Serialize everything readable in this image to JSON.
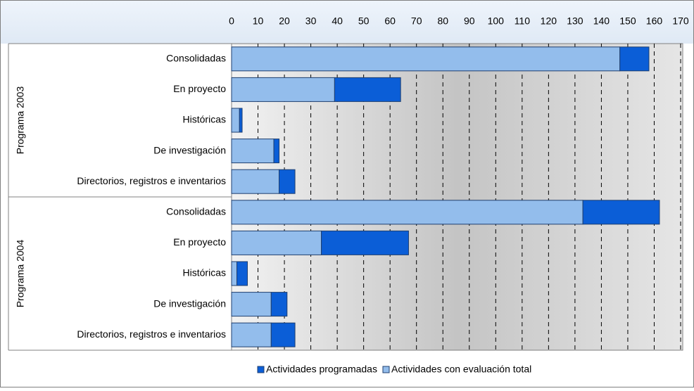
{
  "chart_data": {
    "type": "bar",
    "orientation": "horizontal",
    "stacked": true,
    "groups": [
      "Programa 2003",
      "Programa 2004"
    ],
    "categories": [
      "Consolidadas",
      "En proyecto",
      "Históricas",
      "De investigación",
      "Directorios, registros e inventarios",
      "Consolidadas",
      "En proyecto",
      "Históricas",
      "De investigación",
      "Directorios, registros e inventarios"
    ],
    "series": [
      {
        "name": "Actividades programadas",
        "color": "#0b5ed7",
        "values": [
          11,
          25,
          1,
          2,
          6,
          29,
          33,
          4,
          6,
          9
        ]
      },
      {
        "name": "Actividades con evaluación total",
        "color": "#93bdec",
        "values": [
          147,
          39,
          3,
          16,
          18,
          133,
          34,
          2,
          15,
          15
        ]
      }
    ],
    "xlim": [
      0,
      170
    ],
    "xticks": [
      0,
      10,
      20,
      30,
      40,
      50,
      60,
      70,
      80,
      90,
      100,
      110,
      120,
      130,
      140,
      150,
      160,
      170
    ],
    "grid": true,
    "legend": "bottom"
  }
}
